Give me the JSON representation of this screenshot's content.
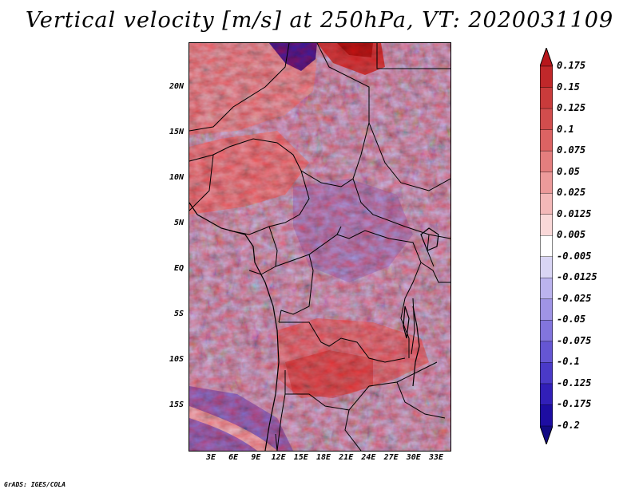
{
  "title": "Vertical velocity [m/s] at 250hPa, VT: 2020031109",
  "map": {
    "variable": "Vertical velocity",
    "units": "m/s",
    "level": "250hPa",
    "valid_time": "2020031109",
    "lat_labels": [
      "20N",
      "15N",
      "10N",
      "5N",
      "EQ",
      "5S",
      "10S",
      "15S"
    ],
    "lon_labels": [
      "3E",
      "6E",
      "9E",
      "12E",
      "15E",
      "18E",
      "21E",
      "24E",
      "27E",
      "30E",
      "33E"
    ],
    "colorbar": {
      "labels": [
        "0.175",
        "0.15",
        "0.125",
        "0.1",
        "0.075",
        "0.05",
        "0.025",
        "0.0125",
        "0.005",
        "-0.005",
        "-0.0125",
        "-0.025",
        "-0.05",
        "-0.075",
        "-0.1",
        "-0.125",
        "-0.175",
        "-0.2"
      ],
      "colors": [
        "#b7171c",
        "#c0282a",
        "#c93b3b",
        "#d24d4d",
        "#dc6363",
        "#e47e7e",
        "#ec9a9a",
        "#f3b8b8",
        "#f9d8d8",
        "#ffffff",
        "#d9d5f4",
        "#bbb3ee",
        "#9f94e6",
        "#8275dd",
        "#6556d3",
        "#4a3ac8",
        "#311fb8",
        "#1d0da2",
        "#120a84"
      ]
    }
  },
  "footer": "GrADS: IGES/COLA"
}
